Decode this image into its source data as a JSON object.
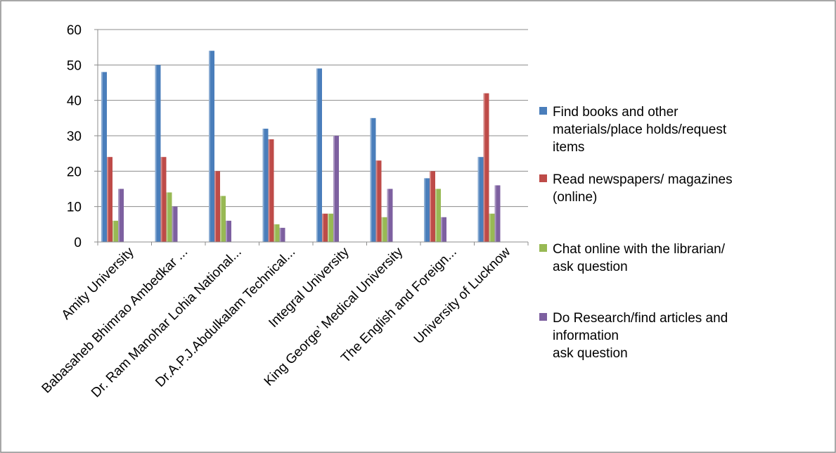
{
  "chart_data": {
    "type": "bar",
    "title": "",
    "xlabel": "",
    "ylabel": "",
    "ylim": [
      0,
      60
    ],
    "yticks": [
      0,
      10,
      20,
      30,
      40,
      50,
      60
    ],
    "grid": true,
    "legend_position": "right",
    "categories": [
      "Amity University",
      "Babasaheb Bhimrao Ambedkar ...",
      "Dr. Ram Manohar Lohia National...",
      "Dr.A.P.J.Abdulkalam Technical...",
      "Integral University",
      "King George’ Medical University",
      "The English and Foreign...",
      "University of Lucknow"
    ],
    "series": [
      {
        "name": "Find books and other materials/place holds/request items",
        "legend_lines": [
          "Find books and other",
          "materials/place holds/request",
          "items"
        ],
        "color": "#4a7ebb",
        "values": [
          48,
          50,
          54,
          32,
          49,
          35,
          18,
          24
        ]
      },
      {
        "name": "Read newspapers/ magazines (online)",
        "legend_lines": [
          "Read newspapers/ magazines",
          "(online)"
        ],
        "color": "#be4b48",
        "values": [
          24,
          24,
          20,
          29,
          8,
          23,
          20,
          42
        ]
      },
      {
        "name": "Chat online with the librarian/ ask question",
        "legend_lines": [
          "Chat online with the librarian/",
          "ask question"
        ],
        "color": "#98b954",
        "values": [
          6,
          14,
          13,
          5,
          8,
          7,
          15,
          8
        ]
      },
      {
        "name": "Do Research/find articles and information ask question",
        "legend_lines": [
          "Do Research/find articles and",
          "information",
          "ask question"
        ],
        "color": "#7d60a0",
        "values": [
          15,
          10,
          6,
          4,
          30,
          15,
          7,
          16
        ]
      }
    ]
  }
}
